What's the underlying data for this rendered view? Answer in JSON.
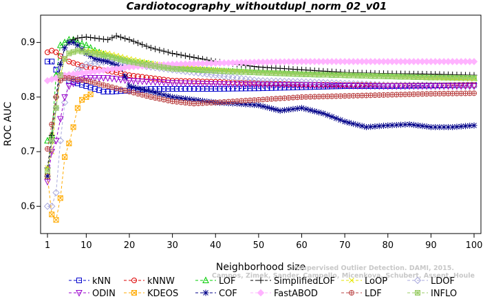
{
  "chart_data": {
    "type": "line",
    "title": "Cardiotocography_withoutdupl_norm_02_v01",
    "xlabel": "Neighborhood size",
    "ylabel": "ROC AUC",
    "xlim": [
      1,
      100
    ],
    "ylim": [
      0.55,
      0.95
    ],
    "x_ticks": [
      1,
      10,
      20,
      30,
      40,
      50,
      60,
      70,
      80,
      90,
      100
    ],
    "y_ticks": [
      0.6,
      0.7,
      0.8,
      0.9
    ],
    "y_tick_labels": [
      "0.6",
      "0.7",
      "0.8",
      "0.9"
    ],
    "grid": false,
    "legend_position": "bottom",
    "series": [
      {
        "name": "kNN",
        "color": "#0000cc",
        "marker": "square",
        "dash": "4,3",
        "points": [
          [
            1,
            0.865
          ],
          [
            2,
            0.865
          ],
          [
            3,
            0.85
          ],
          [
            4,
            0.84
          ],
          [
            5,
            0.835
          ],
          [
            6,
            0.83
          ],
          [
            8,
            0.825
          ],
          [
            10,
            0.82
          ],
          [
            12,
            0.815
          ],
          [
            14,
            0.81
          ],
          [
            16,
            0.81
          ],
          [
            20,
            0.812
          ],
          [
            25,
            0.815
          ],
          [
            30,
            0.815
          ],
          [
            40,
            0.815
          ],
          [
            50,
            0.816
          ],
          [
            60,
            0.818
          ],
          [
            70,
            0.82
          ],
          [
            80,
            0.82
          ],
          [
            90,
            0.821
          ],
          [
            100,
            0.822
          ]
        ]
      },
      {
        "name": "kNNW",
        "color": "#dd0000",
        "marker": "circle",
        "dash": "4,3",
        "points": [
          [
            1,
            0.882
          ],
          [
            2,
            0.885
          ],
          [
            3,
            0.882
          ],
          [
            4,
            0.875
          ],
          [
            5,
            0.87
          ],
          [
            6,
            0.865
          ],
          [
            8,
            0.86
          ],
          [
            10,
            0.855
          ],
          [
            15,
            0.848
          ],
          [
            20,
            0.84
          ],
          [
            25,
            0.835
          ],
          [
            30,
            0.83
          ],
          [
            40,
            0.828
          ],
          [
            50,
            0.825
          ],
          [
            60,
            0.823
          ],
          [
            70,
            0.822
          ],
          [
            80,
            0.822
          ],
          [
            90,
            0.822
          ],
          [
            100,
            0.822
          ]
        ]
      },
      {
        "name": "LOF",
        "color": "#00cc00",
        "marker": "triangle",
        "dash": "4,3",
        "points": [
          [
            1,
            0.72
          ],
          [
            2,
            0.73
          ],
          [
            3,
            0.84
          ],
          [
            4,
            0.895
          ],
          [
            5,
            0.9
          ],
          [
            6,
            0.905
          ],
          [
            7,
            0.905
          ],
          [
            8,
            0.9
          ],
          [
            10,
            0.895
          ],
          [
            12,
            0.885
          ],
          [
            15,
            0.875
          ],
          [
            20,
            0.865
          ],
          [
            25,
            0.86
          ],
          [
            30,
            0.855
          ],
          [
            40,
            0.848
          ],
          [
            50,
            0.845
          ],
          [
            60,
            0.842
          ],
          [
            70,
            0.84
          ],
          [
            80,
            0.838
          ],
          [
            90,
            0.836
          ],
          [
            100,
            0.835
          ]
        ]
      },
      {
        "name": "SimplifiedLOF",
        "color": "#000000",
        "marker": "plus",
        "dash": "4,3",
        "points": [
          [
            1,
            0.67
          ],
          [
            2,
            0.73
          ],
          [
            3,
            0.8
          ],
          [
            4,
            0.86
          ],
          [
            5,
            0.89
          ],
          [
            6,
            0.9
          ],
          [
            7,
            0.905
          ],
          [
            8,
            0.908
          ],
          [
            10,
            0.91
          ],
          [
            12,
            0.908
          ],
          [
            15,
            0.905
          ],
          [
            17,
            0.912
          ],
          [
            20,
            0.905
          ],
          [
            25,
            0.89
          ],
          [
            30,
            0.88
          ],
          [
            40,
            0.865
          ],
          [
            50,
            0.855
          ],
          [
            60,
            0.85
          ],
          [
            70,
            0.845
          ],
          [
            80,
            0.843
          ],
          [
            90,
            0.842
          ],
          [
            100,
            0.84
          ]
        ]
      },
      {
        "name": "LoOP",
        "color": "#e6e600",
        "marker": "x",
        "dash": "4,3",
        "points": [
          [
            1,
            0.67
          ],
          [
            2,
            0.7
          ],
          [
            3,
            0.78
          ],
          [
            4,
            0.84
          ],
          [
            5,
            0.87
          ],
          [
            6,
            0.88
          ],
          [
            8,
            0.885
          ],
          [
            10,
            0.885
          ],
          [
            15,
            0.88
          ],
          [
            20,
            0.87
          ],
          [
            25,
            0.862
          ],
          [
            30,
            0.855
          ],
          [
            40,
            0.85
          ],
          [
            50,
            0.845
          ],
          [
            60,
            0.842
          ],
          [
            70,
            0.84
          ],
          [
            80,
            0.838
          ],
          [
            90,
            0.835
          ],
          [
            100,
            0.833
          ]
        ]
      },
      {
        "name": "LDOF",
        "color": "#aaaadd",
        "marker": "diamond",
        "dash": "4,3",
        "points": [
          [
            1,
            0.6
          ],
          [
            2,
            0.6
          ],
          [
            3,
            0.625
          ],
          [
            4,
            0.72
          ],
          [
            5,
            0.79
          ],
          [
            6,
            0.83
          ],
          [
            8,
            0.85
          ],
          [
            10,
            0.86
          ],
          [
            15,
            0.865
          ],
          [
            20,
            0.86
          ],
          [
            25,
            0.855
          ],
          [
            30,
            0.85
          ],
          [
            40,
            0.84
          ],
          [
            50,
            0.83
          ],
          [
            60,
            0.828
          ],
          [
            70,
            0.825
          ],
          [
            80,
            0.822
          ],
          [
            90,
            0.822
          ],
          [
            100,
            0.82
          ]
        ]
      },
      {
        "name": "ODIN",
        "color": "#9900cc",
        "marker": "triangle-down",
        "dash": "4,3",
        "points": [
          [
            1,
            0.645
          ],
          [
            2,
            0.7
          ],
          [
            3,
            0.72
          ],
          [
            4,
            0.76
          ],
          [
            5,
            0.8
          ],
          [
            6,
            0.82
          ],
          [
            8,
            0.83
          ],
          [
            10,
            0.835
          ],
          [
            15,
            0.835
          ],
          [
            20,
            0.83
          ],
          [
            25,
            0.828
          ],
          [
            30,
            0.826
          ],
          [
            40,
            0.824
          ],
          [
            50,
            0.823
          ],
          [
            60,
            0.822
          ],
          [
            70,
            0.821
          ],
          [
            80,
            0.82
          ],
          [
            90,
            0.82
          ],
          [
            100,
            0.82
          ]
        ]
      },
      {
        "name": "KDEOS",
        "color": "#ffaa00",
        "marker": "boxed-x",
        "dash": "4,3",
        "points": [
          [
            1,
            0.655
          ],
          [
            2,
            0.585
          ],
          [
            3,
            0.575
          ],
          [
            4,
            0.615
          ],
          [
            5,
            0.69
          ],
          [
            6,
            0.715
          ],
          [
            7,
            0.745
          ],
          [
            8,
            0.78
          ],
          [
            9,
            0.795
          ],
          [
            10,
            0.8
          ],
          [
            11,
            0.805
          ]
        ]
      },
      {
        "name": "COF",
        "color": "#000088",
        "marker": "asterisk",
        "dash": "4,3",
        "points": [
          [
            1,
            0.655
          ],
          [
            2,
            0.72
          ],
          [
            3,
            0.78
          ],
          [
            4,
            0.86
          ],
          [
            5,
            0.89
          ],
          [
            6,
            0.9
          ],
          [
            7,
            0.9
          ],
          [
            8,
            0.895
          ],
          [
            10,
            0.88
          ],
          [
            12,
            0.87
          ],
          [
            15,
            0.865
          ],
          [
            18,
            0.855
          ],
          [
            20,
            0.82
          ],
          [
            25,
            0.81
          ],
          [
            30,
            0.8
          ],
          [
            35,
            0.795
          ],
          [
            40,
            0.79
          ],
          [
            45,
            0.788
          ],
          [
            50,
            0.785
          ],
          [
            55,
            0.775
          ],
          [
            60,
            0.78
          ],
          [
            65,
            0.77
          ],
          [
            70,
            0.755
          ],
          [
            75,
            0.745
          ],
          [
            80,
            0.748
          ],
          [
            85,
            0.75
          ],
          [
            90,
            0.745
          ],
          [
            95,
            0.745
          ],
          [
            100,
            0.748
          ]
        ]
      },
      {
        "name": "FastABOD",
        "color": "#ffb3ff",
        "marker": "diamond-filled",
        "dash": "4,3",
        "points": [
          [
            1,
            0.83
          ],
          [
            5,
            0.84
          ],
          [
            10,
            0.845
          ],
          [
            15,
            0.85
          ],
          [
            20,
            0.855
          ],
          [
            25,
            0.858
          ],
          [
            30,
            0.86
          ],
          [
            40,
            0.862
          ],
          [
            50,
            0.864
          ],
          [
            60,
            0.865
          ],
          [
            70,
            0.865
          ],
          [
            80,
            0.865
          ],
          [
            90,
            0.865
          ],
          [
            100,
            0.865
          ]
        ]
      },
      {
        "name": "LDF",
        "color": "#bb4444",
        "marker": "circle-plus",
        "dash": "4,3",
        "points": [
          [
            1,
            0.705
          ],
          [
            2,
            0.75
          ],
          [
            3,
            0.8
          ],
          [
            4,
            0.83
          ],
          [
            5,
            0.835
          ],
          [
            6,
            0.835
          ],
          [
            8,
            0.832
          ],
          [
            10,
            0.83
          ],
          [
            15,
            0.82
          ],
          [
            20,
            0.81
          ],
          [
            25,
            0.8
          ],
          [
            30,
            0.792
          ],
          [
            35,
            0.788
          ],
          [
            40,
            0.79
          ],
          [
            50,
            0.795
          ],
          [
            60,
            0.8
          ],
          [
            70,
            0.802
          ],
          [
            80,
            0.804
          ],
          [
            90,
            0.806
          ],
          [
            100,
            0.807
          ]
        ]
      },
      {
        "name": "INFLO",
        "color": "#99cc66",
        "marker": "boxed-asterisk",
        "dash": "4,3",
        "points": [
          [
            1,
            0.665
          ],
          [
            2,
            0.72
          ],
          [
            3,
            0.78
          ],
          [
            4,
            0.84
          ],
          [
            5,
            0.87
          ],
          [
            6,
            0.88
          ],
          [
            8,
            0.885
          ],
          [
            10,
            0.882
          ],
          [
            15,
            0.875
          ],
          [
            20,
            0.865
          ],
          [
            25,
            0.858
          ],
          [
            30,
            0.852
          ],
          [
            40,
            0.848
          ],
          [
            50,
            0.845
          ],
          [
            60,
            0.842
          ],
          [
            70,
            0.84
          ],
          [
            80,
            0.838
          ],
          [
            90,
            0.836
          ],
          [
            100,
            0.835
          ]
        ]
      }
    ]
  },
  "watermark": {
    "line1": "Unsupervised Outlier Detection. DAMI, 2015.",
    "line2": "Campos, Zimek, Sander, Campello, Micenkova, Schubert, Assent, Houle"
  }
}
